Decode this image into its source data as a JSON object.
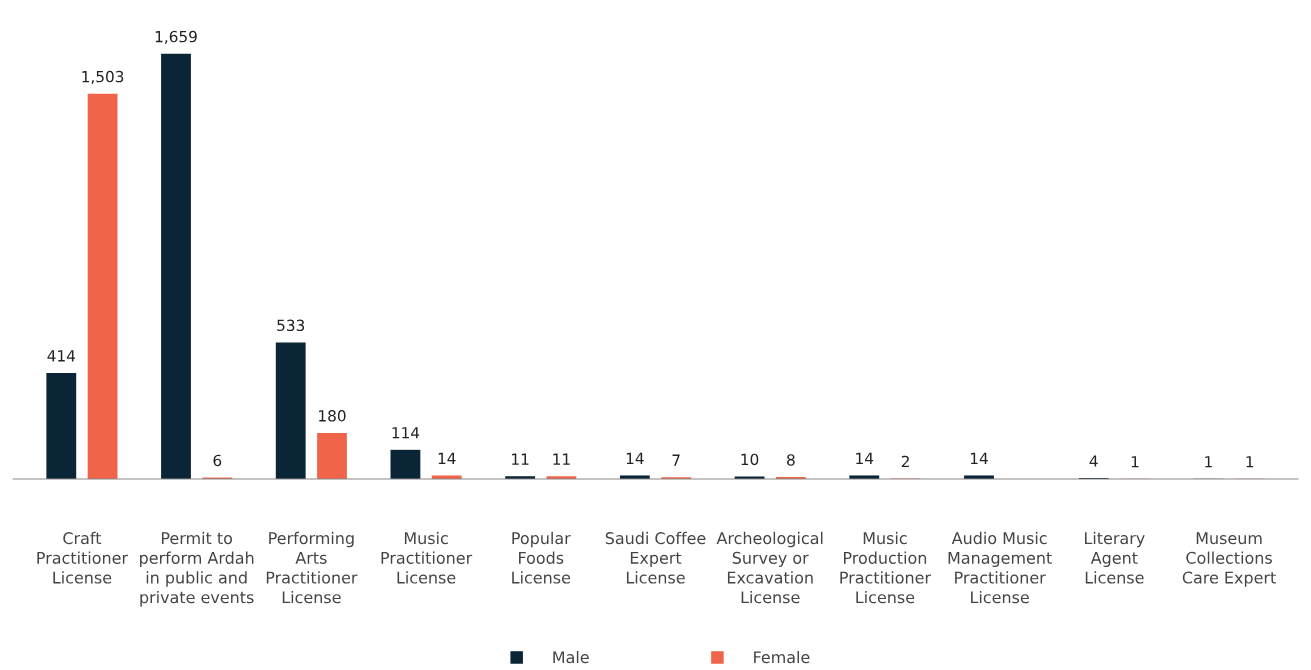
{
  "chart_data": {
    "type": "bar",
    "categories": [
      "Craft\nPractitioner\nLicense",
      "Permit to\nperform Ardah\nin public and\nprivate events",
      "Performing\nArts\nPractitioner\nLicense",
      "Music\nPractitioner\nLicense",
      "Popular\nFoods\nLicense",
      "Saudi Coffee\nExpert\nLicense",
      "Archeological\nSurvey or\nExcavation\nLicense",
      "Music\nProduction\nPractitioner\nLicense",
      "Audio Music\nManagement\nPractitioner\nLicense",
      "Literary\nAgent\nLicense",
      "Museum\nCollections\nCare Expert"
    ],
    "series": [
      {
        "name": "Male",
        "color": "#0a2536",
        "values": [
          414,
          1659,
          533,
          114,
          11,
          14,
          10,
          14,
          14,
          4,
          1
        ],
        "value_labels": [
          "414",
          "1,659",
          "533",
          "114",
          "11",
          "14",
          "10",
          "14",
          "14",
          "4",
          "1"
        ]
      },
      {
        "name": "Female",
        "color": "#f0654a",
        "values": [
          1503,
          6,
          180,
          14,
          11,
          7,
          8,
          2,
          null,
          1,
          1
        ],
        "value_labels": [
          "1,503",
          "6",
          "180",
          "14",
          "11",
          "7",
          "8",
          "2",
          null,
          "1",
          "1"
        ]
      }
    ],
    "legend": "bottom",
    "grid": false
  }
}
